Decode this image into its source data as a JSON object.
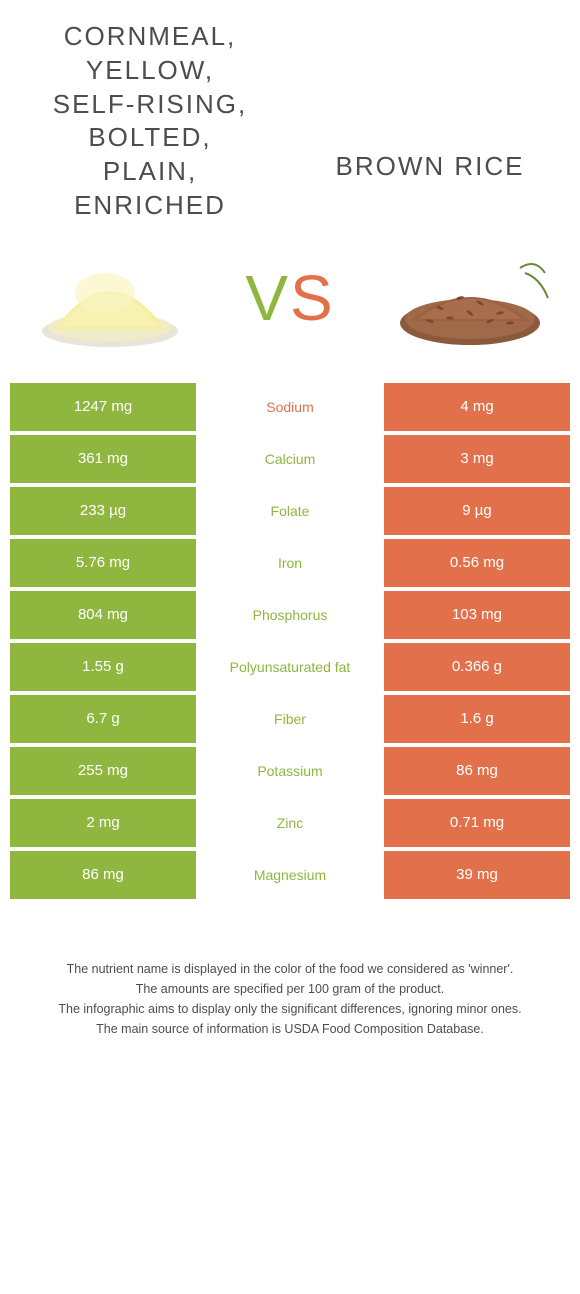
{
  "colors": {
    "green": "#8fb63f",
    "orange": "#e2714b",
    "text": "#4d4d4d",
    "white": "#ffffff"
  },
  "header": {
    "left_title": "CORNMEAL, YELLOW, SELF-RISING, BOLTED, PLAIN, ENRICHED",
    "right_title": "BROWN RICE",
    "vs_v": "V",
    "vs_s": "S"
  },
  "table": {
    "rows": [
      {
        "left": "1247 mg",
        "label": "Sodium",
        "winner": "orange",
        "right": "4 mg"
      },
      {
        "left": "361 mg",
        "label": "Calcium",
        "winner": "green",
        "right": "3 mg"
      },
      {
        "left": "233 µg",
        "label": "Folate",
        "winner": "green",
        "right": "9 µg"
      },
      {
        "left": "5.76 mg",
        "label": "Iron",
        "winner": "green",
        "right": "0.56 mg"
      },
      {
        "left": "804 mg",
        "label": "Phosphorus",
        "winner": "green",
        "right": "103 mg"
      },
      {
        "left": "1.55 g",
        "label": "Polyunsaturated fat",
        "winner": "green",
        "right": "0.366 g"
      },
      {
        "left": "6.7 g",
        "label": "Fiber",
        "winner": "green",
        "right": "1.6 g"
      },
      {
        "left": "255 mg",
        "label": "Potassium",
        "winner": "green",
        "right": "86 mg"
      },
      {
        "left": "2 mg",
        "label": "Zinc",
        "winner": "green",
        "right": "0.71 mg"
      },
      {
        "left": "86 mg",
        "label": "Magnesium",
        "winner": "green",
        "right": "39 mg"
      }
    ]
  },
  "footer": {
    "line1": "The nutrient name is displayed in the color of the food we considered as 'winner'.",
    "line2": "The amounts are specified per 100 gram of the product.",
    "line3": "The infographic aims to display only the significant differences, ignoring minor ones.",
    "line4": "The main source of information is USDA Food Composition Database."
  }
}
